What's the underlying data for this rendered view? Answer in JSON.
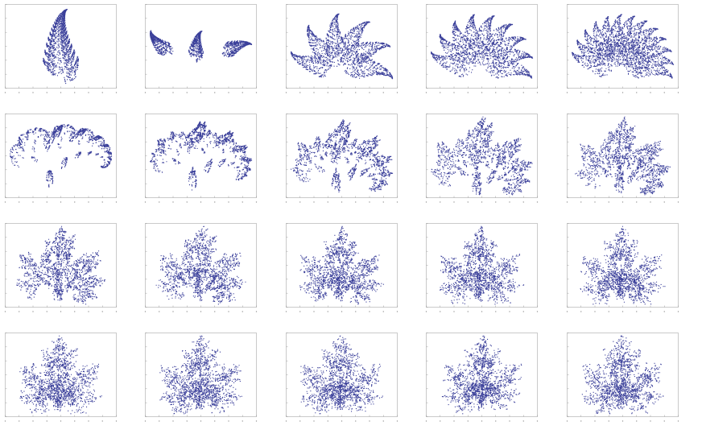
{
  "figure": {
    "rows": 4,
    "cols": 5,
    "point_color": "#3a3f9a",
    "frame_color": "#bdbdbd",
    "tick_color": "#9a9a9a"
  },
  "chart_data": [
    {
      "type": "scatter",
      "shape": "fern",
      "morph": 0.0,
      "spread": 0.0,
      "grid": false
    },
    {
      "type": "scatter",
      "shape": "fern-triplet",
      "morph": 0.05,
      "spread": 0.05,
      "grid": false
    },
    {
      "type": "scatter",
      "shape": "fern-fan",
      "morph": 0.12,
      "spread": 0.1,
      "grid": false
    },
    {
      "type": "scatter",
      "shape": "fern-fan",
      "morph": 0.22,
      "spread": 0.18,
      "grid": false
    },
    {
      "type": "scatter",
      "shape": "fern-fan",
      "morph": 0.34,
      "spread": 0.26,
      "grid": false
    },
    {
      "type": "scatter",
      "shape": "leaf",
      "morph": 0.46,
      "spread": 0.34,
      "grid": false
    },
    {
      "type": "scatter",
      "shape": "leaf",
      "morph": 0.55,
      "spread": 0.4,
      "grid": false
    },
    {
      "type": "scatter",
      "shape": "leaf",
      "morph": 0.63,
      "spread": 0.46,
      "grid": false
    },
    {
      "type": "scatter",
      "shape": "leaf",
      "morph": 0.7,
      "spread": 0.52,
      "grid": false
    },
    {
      "type": "scatter",
      "shape": "leaf",
      "morph": 0.76,
      "spread": 0.58,
      "grid": false
    },
    {
      "type": "scatter",
      "shape": "maple",
      "morph": 0.82,
      "spread": 0.64,
      "grid": false
    },
    {
      "type": "scatter",
      "shape": "maple",
      "morph": 0.86,
      "spread": 0.7,
      "grid": false
    },
    {
      "type": "scatter",
      "shape": "maple",
      "morph": 0.9,
      "spread": 0.76,
      "grid": false
    },
    {
      "type": "scatter",
      "shape": "maple",
      "morph": 0.93,
      "spread": 0.82,
      "grid": false
    },
    {
      "type": "scatter",
      "shape": "maple",
      "morph": 0.95,
      "spread": 0.88,
      "grid": false
    },
    {
      "type": "scatter",
      "shape": "maple",
      "morph": 0.97,
      "spread": 0.92,
      "grid": false
    },
    {
      "type": "scatter",
      "shape": "maple",
      "morph": 0.98,
      "spread": 0.95,
      "grid": false
    },
    {
      "type": "scatter",
      "shape": "maple",
      "morph": 0.99,
      "spread": 0.97,
      "grid": false
    },
    {
      "type": "scatter",
      "shape": "maple",
      "morph": 1.0,
      "spread": 0.99,
      "grid": false
    },
    {
      "type": "scatter",
      "shape": "maple",
      "morph": 1.0,
      "spread": 1.0,
      "grid": false
    }
  ]
}
